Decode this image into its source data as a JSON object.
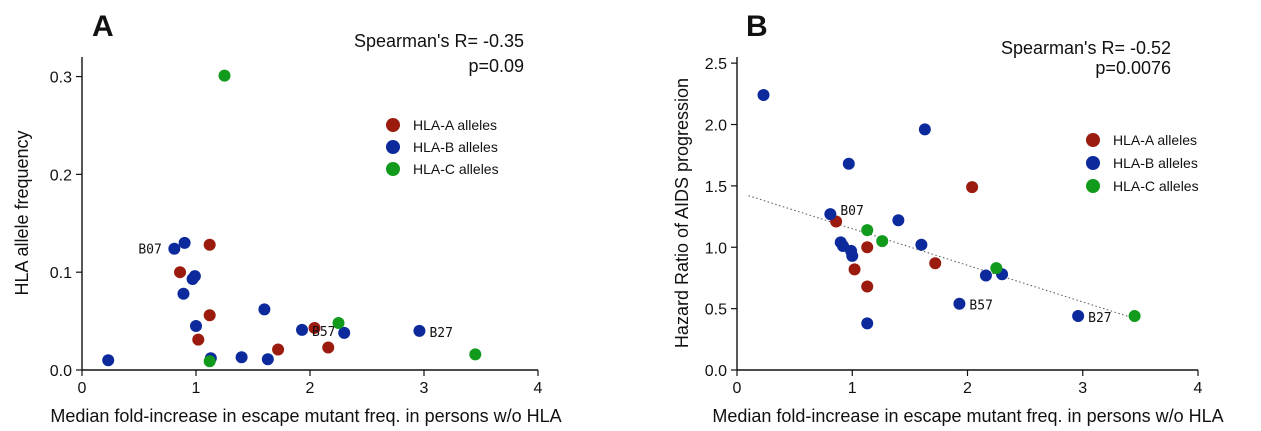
{
  "colors": {
    "HLA-A": "#9b1c0e",
    "HLA-B": "#0c2a9c",
    "HLA-C": "#119a1c"
  },
  "chart_data": [
    {
      "type": "scatter",
      "panel_label": "A",
      "title": "",
      "xlabel": "Median fold-increase in escape mutant freq. in persons w/o HLA",
      "ylabel": "HLA allele frequency",
      "xlim": [
        0,
        4
      ],
      "ylim": [
        0,
        0.32
      ],
      "x_ticks": [
        "0",
        "1",
        "2",
        "3",
        "4"
      ],
      "y_ticks": [
        "0.0",
        "0.1",
        "0.2",
        "0.3"
      ],
      "stat_line1": "Spearman's R= -0.35",
      "stat_line2": "p=0.09",
      "legend": [
        "HLA-A alleles",
        "HLA-B alleles",
        "HLA-C alleles"
      ],
      "trendline": null,
      "series": [
        {
          "name": "HLA-A alleles",
          "points": [
            {
              "x": 0.86,
              "y": 0.1
            },
            {
              "x": 1.12,
              "y": 0.128
            },
            {
              "x": 1.12,
              "y": 0.056
            },
            {
              "x": 1.02,
              "y": 0.031
            },
            {
              "x": 1.72,
              "y": 0.021
            },
            {
              "x": 2.04,
              "y": 0.043
            },
            {
              "x": 2.16,
              "y": 0.023
            }
          ]
        },
        {
          "name": "HLA-B alleles",
          "points": [
            {
              "x": 0.23,
              "y": 0.01
            },
            {
              "x": 0.81,
              "y": 0.124,
              "label": "B07"
            },
            {
              "x": 0.9,
              "y": 0.13
            },
            {
              "x": 0.97,
              "y": 0.093
            },
            {
              "x": 0.99,
              "y": 0.096
            },
            {
              "x": 0.89,
              "y": 0.078
            },
            {
              "x": 1.0,
              "y": 0.045
            },
            {
              "x": 1.13,
              "y": 0.012
            },
            {
              "x": 1.4,
              "y": 0.013
            },
            {
              "x": 1.6,
              "y": 0.062
            },
            {
              "x": 1.63,
              "y": 0.011
            },
            {
              "x": 1.93,
              "y": 0.041,
              "label": "B57"
            },
            {
              "x": 2.3,
              "y": 0.038
            },
            {
              "x": 2.96,
              "y": 0.04,
              "label": "B27"
            }
          ]
        },
        {
          "name": "HLA-C alleles",
          "points": [
            {
              "x": 1.25,
              "y": 0.301
            },
            {
              "x": 2.25,
              "y": 0.048
            },
            {
              "x": 1.12,
              "y": 0.009
            },
            {
              "x": 3.45,
              "y": 0.016
            }
          ]
        }
      ]
    },
    {
      "type": "scatter",
      "panel_label": "B",
      "title": "",
      "xlabel": "Median fold-increase in escape mutant freq. in persons w/o HLA",
      "ylabel": "Hazard Ratio of AIDS progression",
      "xlim": [
        0,
        4
      ],
      "ylim": [
        0,
        2.55
      ],
      "x_ticks": [
        "0",
        "1",
        "2",
        "3",
        "4"
      ],
      "y_ticks": [
        "0.0",
        "0.5",
        "1.0",
        "1.5",
        "2.0",
        "2.5"
      ],
      "stat_line1": "Spearman's R= -0.52",
      "stat_line2": "p=0.0076",
      "legend": [
        "HLA-A alleles",
        "HLA-B alleles",
        "HLA-C alleles"
      ],
      "trendline": {
        "x1": 0.1,
        "y1": 1.42,
        "x2": 3.45,
        "y2": 0.42
      },
      "series": [
        {
          "name": "HLA-A alleles",
          "points": [
            {
              "x": 0.86,
              "y": 1.21
            },
            {
              "x": 2.04,
              "y": 1.49
            },
            {
              "x": 1.13,
              "y": 1.0
            },
            {
              "x": 1.02,
              "y": 0.82
            },
            {
              "x": 1.13,
              "y": 0.68
            },
            {
              "x": 1.72,
              "y": 0.87
            }
          ]
        },
        {
          "name": "HLA-B alleles",
          "points": [
            {
              "x": 0.23,
              "y": 2.24
            },
            {
              "x": 1.63,
              "y": 1.96
            },
            {
              "x": 0.97,
              "y": 1.68
            },
            {
              "x": 0.81,
              "y": 1.27,
              "label": "B07"
            },
            {
              "x": 1.4,
              "y": 1.22
            },
            {
              "x": 0.9,
              "y": 1.04
            },
            {
              "x": 0.92,
              "y": 1.01
            },
            {
              "x": 0.99,
              "y": 0.97
            },
            {
              "x": 1.0,
              "y": 0.93
            },
            {
              "x": 1.6,
              "y": 1.02
            },
            {
              "x": 2.16,
              "y": 0.77
            },
            {
              "x": 2.3,
              "y": 0.78
            },
            {
              "x": 1.93,
              "y": 0.54,
              "label": "B57"
            },
            {
              "x": 2.96,
              "y": 0.44,
              "label": "B27"
            },
            {
              "x": 1.13,
              "y": 0.38
            }
          ]
        },
        {
          "name": "HLA-C alleles",
          "points": [
            {
              "x": 1.13,
              "y": 1.14
            },
            {
              "x": 1.26,
              "y": 1.05
            },
            {
              "x": 2.25,
              "y": 0.83
            },
            {
              "x": 3.45,
              "y": 0.44
            }
          ]
        }
      ]
    }
  ]
}
